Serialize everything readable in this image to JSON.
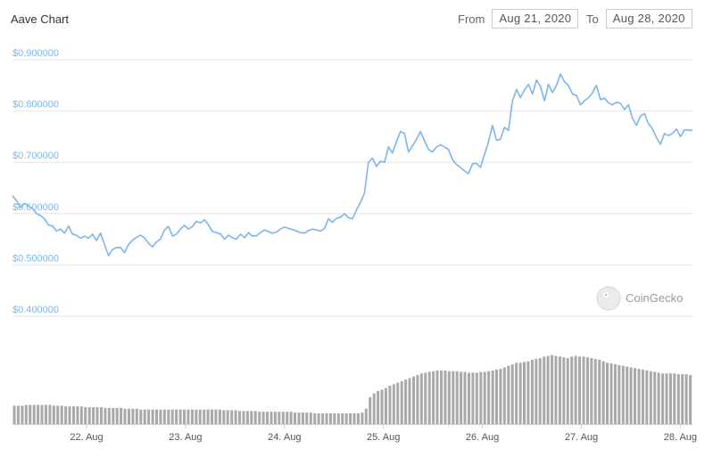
{
  "title": "Aave Chart",
  "range": {
    "from_label": "From",
    "from_value": "Aug 21, 2020",
    "to_label": "To",
    "to_value": "Aug 28, 2020"
  },
  "watermark": {
    "text": "CoinGecko",
    "icon": "gecko-icon"
  },
  "colors": {
    "line": "#7cb5ec",
    "volume": "#a9a9a9",
    "grid": "#e6e6e6"
  },
  "chart_data": {
    "type": "line",
    "title": "Aave Chart",
    "xlabel": "",
    "ylabel": "",
    "x_start": "Aug 21, 2020 13:00",
    "x_end": "Aug 28, 2020 12:00",
    "x_ticks": [
      "22. Aug",
      "23. Aug",
      "24. Aug",
      "25. Aug",
      "26. Aug",
      "27. Aug",
      "28. Aug"
    ],
    "y_ticks": [
      "$0.900000",
      "$0.800000",
      "$0.700000",
      "$0.600000",
      "$0.500000",
      "$0.400000"
    ],
    "ylim": [
      0.4,
      0.9
    ],
    "grid": true,
    "series": [
      {
        "values": [
          0.635,
          0.625,
          0.612,
          0.62,
          0.615,
          0.61,
          0.6,
          0.596,
          0.59,
          0.578,
          0.576,
          0.566,
          0.57,
          0.562,
          0.576,
          0.56,
          0.558,
          0.552,
          0.556,
          0.552,
          0.56,
          0.548,
          0.562,
          0.54,
          0.518,
          0.53,
          0.534,
          0.534,
          0.524,
          0.54,
          0.548,
          0.554,
          0.558,
          0.553,
          0.542,
          0.535,
          0.545,
          0.55,
          0.568,
          0.575,
          0.556,
          0.56,
          0.57,
          0.577,
          0.57,
          0.575,
          0.585,
          0.582,
          0.588,
          0.578,
          0.565,
          0.563,
          0.56,
          0.55,
          0.558,
          0.553,
          0.55,
          0.56,
          0.553,
          0.563,
          0.556,
          0.557,
          0.563,
          0.568,
          0.565,
          0.562,
          0.564,
          0.57,
          0.574,
          0.571,
          0.569,
          0.566,
          0.563,
          0.562,
          0.567,
          0.57,
          0.568,
          0.566,
          0.571,
          0.59,
          0.583,
          0.591,
          0.593,
          0.6,
          0.592,
          0.59,
          0.607,
          0.622,
          0.64,
          0.7,
          0.708,
          0.692,
          0.702,
          0.7,
          0.73,
          0.718,
          0.74,
          0.76,
          0.756,
          0.72,
          0.732,
          0.745,
          0.76,
          0.742,
          0.725,
          0.72,
          0.73,
          0.734,
          0.73,
          0.725,
          0.705,
          0.696,
          0.69,
          0.683,
          0.678,
          0.697,
          0.698,
          0.69,
          0.715,
          0.74,
          0.772,
          0.743,
          0.745,
          0.768,
          0.762,
          0.82,
          0.842,
          0.826,
          0.841,
          0.852,
          0.833,
          0.86,
          0.848,
          0.82,
          0.852,
          0.836,
          0.85,
          0.872,
          0.857,
          0.85,
          0.833,
          0.83,
          0.812,
          0.82,
          0.826,
          0.835,
          0.85,
          0.822,
          0.825,
          0.816,
          0.812,
          0.817,
          0.815,
          0.803,
          0.812,
          0.786,
          0.772,
          0.79,
          0.795,
          0.775,
          0.765,
          0.748,
          0.735,
          0.756,
          0.752,
          0.756,
          0.765,
          0.75,
          0.763,
          0.763,
          0.762
        ]
      }
    ],
    "volume": {
      "values": [
        0.24,
        0.24,
        0.24,
        0.25,
        0.25,
        0.25,
        0.25,
        0.25,
        0.25,
        0.25,
        0.24,
        0.24,
        0.24,
        0.23,
        0.23,
        0.23,
        0.23,
        0.23,
        0.22,
        0.22,
        0.22,
        0.22,
        0.22,
        0.21,
        0.21,
        0.21,
        0.21,
        0.21,
        0.2,
        0.2,
        0.2,
        0.2,
        0.19,
        0.19,
        0.19,
        0.19,
        0.19,
        0.19,
        0.19,
        0.19,
        0.19,
        0.19,
        0.19,
        0.19,
        0.19,
        0.19,
        0.19,
        0.19,
        0.19,
        0.19,
        0.19,
        0.19,
        0.19,
        0.18,
        0.18,
        0.18,
        0.18,
        0.17,
        0.17,
        0.17,
        0.17,
        0.17,
        0.16,
        0.16,
        0.16,
        0.16,
        0.16,
        0.16,
        0.16,
        0.16,
        0.16,
        0.15,
        0.15,
        0.15,
        0.15,
        0.15,
        0.14,
        0.14,
        0.14,
        0.14,
        0.14,
        0.14,
        0.14,
        0.14,
        0.14,
        0.14,
        0.14,
        0.14,
        0.15,
        0.2,
        0.35,
        0.4,
        0.43,
        0.45,
        0.47,
        0.5,
        0.52,
        0.54,
        0.56,
        0.58,
        0.6,
        0.62,
        0.64,
        0.66,
        0.67,
        0.68,
        0.69,
        0.7,
        0.7,
        0.7,
        0.69,
        0.69,
        0.69,
        0.68,
        0.68,
        0.67,
        0.67,
        0.67,
        0.68,
        0.68,
        0.69,
        0.7,
        0.71,
        0.72,
        0.74,
        0.76,
        0.78,
        0.8,
        0.8,
        0.81,
        0.82,
        0.84,
        0.85,
        0.86,
        0.88,
        0.89,
        0.9,
        0.89,
        0.88,
        0.87,
        0.86,
        0.88,
        0.89,
        0.88,
        0.88,
        0.87,
        0.86,
        0.85,
        0.84,
        0.82,
        0.8,
        0.79,
        0.78,
        0.77,
        0.76,
        0.75,
        0.74,
        0.73,
        0.72,
        0.71,
        0.7,
        0.69,
        0.68,
        0.67,
        0.66,
        0.66,
        0.66,
        0.66,
        0.65,
        0.65,
        0.65,
        0.64
      ]
    }
  }
}
